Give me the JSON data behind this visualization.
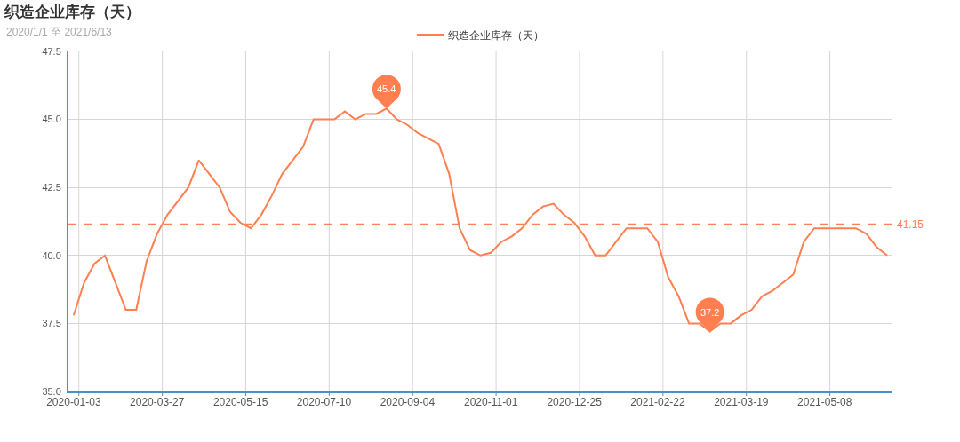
{
  "chart_data": {
    "type": "line",
    "title": "织造企业库存（天）",
    "subtitle": "2020/1/1 至 2021/6/13",
    "categories": [
      "2020-01-03",
      null,
      null,
      null,
      null,
      null,
      null,
      null,
      "2020-03-27",
      null,
      null,
      null,
      null,
      null,
      null,
      null,
      "2020-05-15",
      null,
      null,
      null,
      null,
      null,
      null,
      null,
      "2020-07-10",
      null,
      null,
      null,
      null,
      null,
      null,
      null,
      "2020-09-04",
      null,
      null,
      null,
      null,
      null,
      null,
      null,
      "2020-11-01",
      null,
      null,
      null,
      null,
      null,
      null,
      null,
      "2020-12-25",
      null,
      null,
      null,
      null,
      null,
      null,
      null,
      "2021-02-22",
      null,
      null,
      null,
      null,
      null,
      null,
      null,
      "2021-03-19",
      null,
      null,
      null,
      null,
      null,
      null,
      null,
      "2021-05-08",
      null,
      null,
      null,
      null,
      null,
      null
    ],
    "series": [
      {
        "name": "织造企业库存（天）",
        "color": "#ff7f50",
        "values": [
          37.8,
          39.0,
          39.7,
          40.0,
          39.0,
          38.0,
          38.0,
          39.8,
          40.8,
          41.5,
          42.0,
          42.5,
          43.5,
          43.0,
          42.5,
          41.6,
          41.2,
          41.0,
          41.5,
          42.2,
          43.0,
          43.5,
          44.0,
          45.0,
          45.0,
          45.0,
          45.3,
          45.0,
          45.2,
          45.2,
          45.4,
          45.0,
          44.8,
          44.5,
          44.3,
          44.1,
          43.0,
          41.0,
          40.2,
          40.0,
          40.1,
          40.5,
          40.7,
          41.0,
          41.5,
          41.8,
          41.9,
          41.5,
          41.2,
          40.7,
          40.0,
          40.0,
          40.5,
          41.0,
          41.0,
          41.0,
          40.5,
          39.2,
          38.5,
          37.5,
          37.5,
          37.2,
          37.5,
          37.5,
          37.8,
          38.0,
          38.5,
          38.7,
          39.0,
          39.3,
          40.5,
          41.0,
          41.0,
          41.0,
          41.0,
          41.0,
          40.8,
          40.3,
          40.0
        ],
        "value_labels": [
          null,
          null,
          null,
          null,
          null,
          null,
          null,
          null,
          null,
          null,
          null,
          null,
          null,
          null,
          null,
          null,
          null,
          null,
          null,
          null,
          null,
          null,
          null,
          null,
          null,
          null,
          null,
          null,
          null,
          null,
          "45.4",
          null,
          null,
          null,
          null,
          null,
          null,
          null,
          null,
          null,
          null,
          null,
          null,
          null,
          null,
          null,
          null,
          null,
          null,
          null,
          null,
          null,
          null,
          null,
          null,
          null,
          null,
          null,
          null,
          null,
          null,
          "37.2",
          null,
          null,
          null,
          null,
          null,
          null,
          null,
          null,
          null,
          null,
          null,
          null,
          null,
          null,
          null,
          null,
          null
        ]
      }
    ],
    "ylim": [
      35,
      47.5
    ],
    "yticks": [
      {
        "value": 35,
        "label": "35.0"
      },
      {
        "value": 37.5,
        "label": "37.5"
      },
      {
        "value": 40,
        "label": "40.0"
      },
      {
        "value": 42.5,
        "label": "42.5"
      },
      {
        "value": 45,
        "label": "45.0"
      },
      {
        "value": 47.5,
        "label": "47.5"
      }
    ],
    "ref_lines": [
      {
        "axis": "y",
        "value": 41.15,
        "label": "41.15",
        "color": "#ff7f50",
        "line_style": "dashed"
      }
    ],
    "grid": true,
    "legend": "top"
  }
}
